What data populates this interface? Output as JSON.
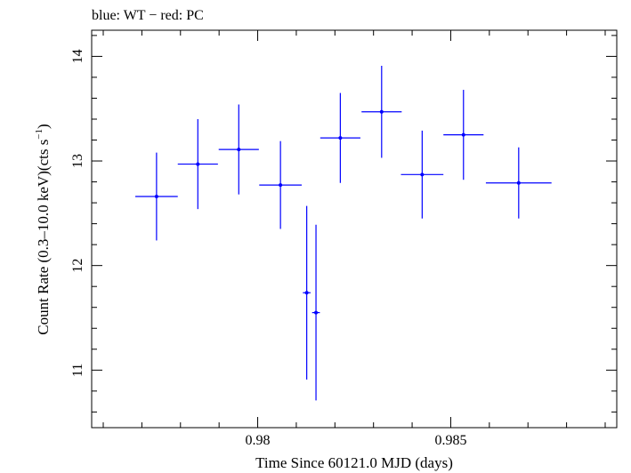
{
  "chart_data": {
    "type": "scatter",
    "title": "blue: WT − red: PC",
    "xlabel": "Time Since 60121.0 MJD (days)",
    "ylabel_main": "Count Rate (0.3–10.0 keV)(cts s",
    "ylabel_sup": "−1",
    "ylabel_close": ")",
    "xlim": [
      0.9757,
      0.9893
    ],
    "ylim": [
      10.45,
      14.25
    ],
    "x_ticks": [
      {
        "value": 0.98,
        "label": "0.98"
      },
      {
        "value": 0.985,
        "label": "0.985"
      }
    ],
    "y_ticks": [
      {
        "value": 11,
        "label": "11"
      },
      {
        "value": 12,
        "label": "12"
      },
      {
        "value": 13,
        "label": "13"
      },
      {
        "value": 14,
        "label": "14"
      }
    ],
    "grid": false,
    "series": [
      {
        "color": "#0000ff",
        "points": [
          {
            "x": 0.97738,
            "xerr": 0.00055,
            "y": 12.66,
            "yerr": 0.42
          },
          {
            "x": 0.97845,
            "xerr": 0.00052,
            "y": 12.97,
            "yerr": 0.43
          },
          {
            "x": 0.97951,
            "xerr": 0.00052,
            "y": 13.11,
            "yerr": 0.43
          },
          {
            "x": 0.98059,
            "xerr": 0.00055,
            "y": 12.77,
            "yerr": 0.42
          },
          {
            "x": 0.98127,
            "xerr": 0.0001,
            "y": 11.74,
            "yerr": 0.83
          },
          {
            "x": 0.98151,
            "xerr": 0.0001,
            "y": 11.55,
            "yerr": 0.84
          },
          {
            "x": 0.98214,
            "xerr": 0.00052,
            "y": 13.22,
            "yerr": 0.43
          },
          {
            "x": 0.98321,
            "xerr": 0.00052,
            "y": 13.47,
            "yerr": 0.44
          },
          {
            "x": 0.98426,
            "xerr": 0.00055,
            "y": 12.87,
            "yerr": 0.42
          },
          {
            "x": 0.98533,
            "xerr": 0.00052,
            "y": 13.25,
            "yerr": 0.43
          },
          {
            "x": 0.98676,
            "xerr": 0.00085,
            "y": 12.79,
            "yerr": 0.34
          }
        ]
      }
    ]
  }
}
